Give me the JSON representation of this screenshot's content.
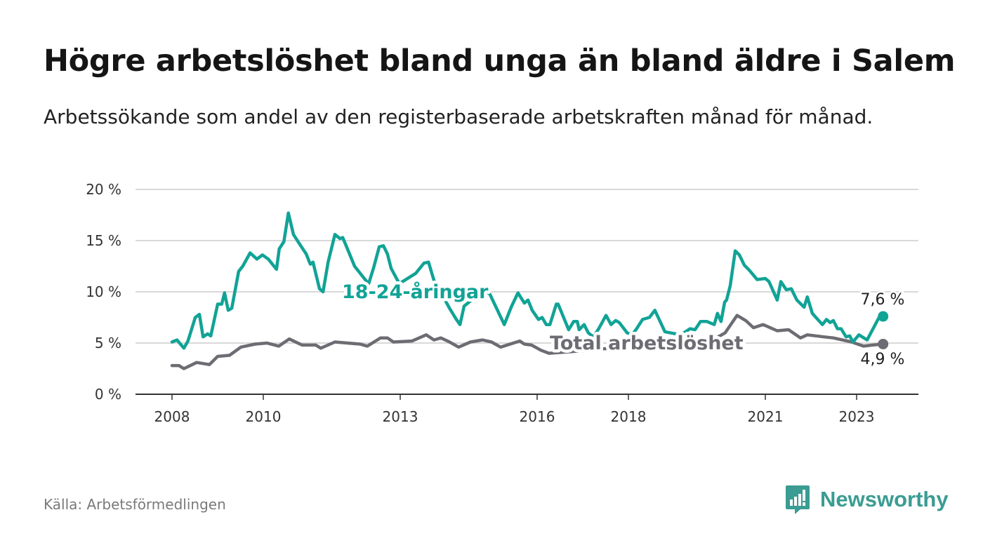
{
  "title": "Högre arbetslöshet bland unga än bland äldre i Salem",
  "subtitle": "Arbetssökande som andel av den registerbaserade arbetskraften månad för månad.",
  "source": "Källa: Arbetsförmedlingen",
  "logo": {
    "text": "Newsworthy",
    "icon": "newsworthy-bar-chart-bubble-icon"
  },
  "colors": {
    "youth": "#11a396",
    "total": "#6e6c73",
    "grid": "#d9d9d9",
    "axis": "#333333"
  },
  "chart_data": {
    "type": "line",
    "title": "Högre arbetslöshet bland unga än bland äldre i Salem",
    "xlabel": "",
    "ylabel": "",
    "ylim": [
      0,
      20
    ],
    "xlim": [
      2007.25,
      2024.7
    ],
    "grid": true,
    "y_ticks": [
      {
        "v": 0,
        "label": "0 %"
      },
      {
        "v": 5,
        "label": "5 %"
      },
      {
        "v": 10,
        "label": "10 %"
      },
      {
        "v": 15,
        "label": "15 %"
      },
      {
        "v": 20,
        "label": "20 %"
      }
    ],
    "x_ticks": [
      {
        "v": 2008,
        "label": "2008"
      },
      {
        "v": 2010,
        "label": "2010"
      },
      {
        "v": 2013,
        "label": "2013"
      },
      {
        "v": 2016,
        "label": "2016"
      },
      {
        "v": 2018,
        "label": "2018"
      },
      {
        "v": 2021,
        "label": "2021"
      },
      {
        "v": 2023,
        "label": "2023"
      }
    ],
    "series": [
      {
        "name": "18-24-åringar",
        "color": "#11a396",
        "end_label": "7,6 %",
        "points": [
          [
            2008.0,
            5.1
          ],
          [
            2008.11,
            5.3
          ],
          [
            2008.26,
            4.5
          ],
          [
            2008.35,
            5.2
          ],
          [
            2008.51,
            7.5
          ],
          [
            2008.6,
            7.8
          ],
          [
            2008.68,
            5.6
          ],
          [
            2008.78,
            5.9
          ],
          [
            2008.85,
            5.7
          ],
          [
            2009.0,
            8.8
          ],
          [
            2009.09,
            8.8
          ],
          [
            2009.15,
            9.9
          ],
          [
            2009.23,
            8.2
          ],
          [
            2009.31,
            8.4
          ],
          [
            2009.46,
            12.0
          ],
          [
            2009.55,
            12.5
          ],
          [
            2009.71,
            13.8
          ],
          [
            2009.86,
            13.2
          ],
          [
            2009.98,
            13.6
          ],
          [
            2010.11,
            13.2
          ],
          [
            2010.29,
            12.2
          ],
          [
            2010.35,
            14.2
          ],
          [
            2010.45,
            14.9
          ],
          [
            2010.55,
            17.7
          ],
          [
            2010.66,
            15.6
          ],
          [
            2010.82,
            14.5
          ],
          [
            2010.94,
            13.7
          ],
          [
            2011.03,
            12.7
          ],
          [
            2011.09,
            12.9
          ],
          [
            2011.23,
            10.3
          ],
          [
            2011.31,
            10.0
          ],
          [
            2011.42,
            12.9
          ],
          [
            2011.57,
            15.6
          ],
          [
            2011.68,
            15.2
          ],
          [
            2011.74,
            15.3
          ],
          [
            2011.88,
            13.8
          ],
          [
            2012.0,
            12.5
          ],
          [
            2012.23,
            11.2
          ],
          [
            2012.31,
            10.8
          ],
          [
            2012.42,
            12.4
          ],
          [
            2012.54,
            14.4
          ],
          [
            2012.63,
            14.5
          ],
          [
            2012.72,
            13.7
          ],
          [
            2012.8,
            12.3
          ],
          [
            2012.98,
            10.8
          ],
          [
            2013.34,
            11.8
          ],
          [
            2013.52,
            12.8
          ],
          [
            2013.62,
            12.9
          ],
          [
            2013.74,
            11.1
          ],
          [
            2013.92,
            9.7
          ],
          [
            2014.08,
            8.4
          ],
          [
            2014.23,
            7.3
          ],
          [
            2014.31,
            6.8
          ],
          [
            2014.4,
            8.6
          ],
          [
            2014.62,
            9.4
          ],
          [
            2014.8,
            9.9
          ],
          [
            2014.95,
            9.9
          ],
          [
            2015.28,
            6.8
          ],
          [
            2015.43,
            8.5
          ],
          [
            2015.58,
            9.9
          ],
          [
            2015.72,
            8.9
          ],
          [
            2015.8,
            9.2
          ],
          [
            2015.89,
            8.2
          ],
          [
            2016.03,
            7.3
          ],
          [
            2016.11,
            7.5
          ],
          [
            2016.2,
            6.8
          ],
          [
            2016.28,
            6.8
          ],
          [
            2016.42,
            8.8
          ],
          [
            2016.46,
            8.8
          ],
          [
            2016.69,
            6.3
          ],
          [
            2016.8,
            7.1
          ],
          [
            2016.88,
            7.1
          ],
          [
            2016.92,
            6.3
          ],
          [
            2017.03,
            6.8
          ],
          [
            2017.12,
            6.0
          ],
          [
            2017.23,
            5.6
          ],
          [
            2017.35,
            6.4
          ],
          [
            2017.51,
            7.7
          ],
          [
            2017.62,
            6.8
          ],
          [
            2017.72,
            7.2
          ],
          [
            2017.8,
            7.0
          ],
          [
            2017.97,
            6.0
          ],
          [
            2018.08,
            5.8
          ],
          [
            2018.18,
            6.4
          ],
          [
            2018.31,
            7.3
          ],
          [
            2018.46,
            7.5
          ],
          [
            2018.58,
            8.2
          ],
          [
            2018.8,
            6.1
          ],
          [
            2018.92,
            6.0
          ],
          [
            2019.15,
            5.8
          ],
          [
            2019.35,
            6.4
          ],
          [
            2019.46,
            6.3
          ],
          [
            2019.58,
            7.1
          ],
          [
            2019.72,
            7.1
          ],
          [
            2019.88,
            6.8
          ],
          [
            2019.95,
            7.9
          ],
          [
            2020.03,
            7.1
          ],
          [
            2020.11,
            9.0
          ],
          [
            2020.15,
            9.2
          ],
          [
            2020.23,
            10.6
          ],
          [
            2020.34,
            14.0
          ],
          [
            2020.43,
            13.6
          ],
          [
            2020.54,
            12.6
          ],
          [
            2020.65,
            12.1
          ],
          [
            2020.82,
            11.2
          ],
          [
            2021.0,
            11.3
          ],
          [
            2021.08,
            11.0
          ],
          [
            2021.26,
            9.2
          ],
          [
            2021.34,
            11.0
          ],
          [
            2021.46,
            10.2
          ],
          [
            2021.57,
            10.3
          ],
          [
            2021.69,
            9.2
          ],
          [
            2021.85,
            8.5
          ],
          [
            2021.92,
            9.5
          ],
          [
            2022.03,
            7.9
          ],
          [
            2022.25,
            6.8
          ],
          [
            2022.34,
            7.3
          ],
          [
            2022.42,
            7.0
          ],
          [
            2022.49,
            7.2
          ],
          [
            2022.58,
            6.4
          ],
          [
            2022.66,
            6.4
          ],
          [
            2022.77,
            5.6
          ],
          [
            2022.85,
            5.7
          ],
          [
            2022.92,
            5.1
          ],
          [
            2023.05,
            5.8
          ],
          [
            2023.23,
            5.3
          ],
          [
            2023.49,
            7.5
          ],
          [
            2023.58,
            7.6
          ]
        ]
      },
      {
        "name": "Total arbetslöshet",
        "color": "#6e6c73",
        "end_label": "4,9 %",
        "points": [
          [
            2008.0,
            2.8
          ],
          [
            2008.15,
            2.8
          ],
          [
            2008.26,
            2.5
          ],
          [
            2008.54,
            3.1
          ],
          [
            2008.82,
            2.9
          ],
          [
            2009.0,
            3.7
          ],
          [
            2009.26,
            3.8
          ],
          [
            2009.51,
            4.6
          ],
          [
            2009.82,
            4.9
          ],
          [
            2010.08,
            5.0
          ],
          [
            2010.34,
            4.7
          ],
          [
            2010.57,
            5.4
          ],
          [
            2010.85,
            4.8
          ],
          [
            2011.15,
            4.8
          ],
          [
            2011.26,
            4.5
          ],
          [
            2011.57,
            5.1
          ],
          [
            2012.12,
            4.9
          ],
          [
            2012.28,
            4.7
          ],
          [
            2012.57,
            5.5
          ],
          [
            2012.72,
            5.5
          ],
          [
            2012.85,
            5.1
          ],
          [
            2013.26,
            5.2
          ],
          [
            2013.57,
            5.8
          ],
          [
            2013.74,
            5.3
          ],
          [
            2013.89,
            5.5
          ],
          [
            2014.08,
            5.1
          ],
          [
            2014.28,
            4.6
          ],
          [
            2014.54,
            5.1
          ],
          [
            2014.8,
            5.3
          ],
          [
            2015.0,
            5.1
          ],
          [
            2015.2,
            4.6
          ],
          [
            2015.62,
            5.2
          ],
          [
            2015.72,
            4.9
          ],
          [
            2015.88,
            4.8
          ],
          [
            2016.08,
            4.3
          ],
          [
            2016.26,
            4.0
          ],
          [
            2016.85,
            4.2
          ],
          [
            2017.62,
            4.5
          ],
          [
            2018.38,
            4.5
          ],
          [
            2019.15,
            4.7
          ],
          [
            2019.77,
            5.1
          ],
          [
            2020.12,
            6.0
          ],
          [
            2020.38,
            7.7
          ],
          [
            2020.57,
            7.2
          ],
          [
            2020.74,
            6.5
          ],
          [
            2020.95,
            6.8
          ],
          [
            2021.26,
            6.2
          ],
          [
            2021.51,
            6.3
          ],
          [
            2021.77,
            5.5
          ],
          [
            2021.92,
            5.8
          ],
          [
            2022.28,
            5.6
          ],
          [
            2022.49,
            5.5
          ],
          [
            2022.89,
            5.1
          ],
          [
            2023.15,
            4.7
          ],
          [
            2023.35,
            4.8
          ],
          [
            2023.58,
            4.9
          ]
        ]
      }
    ]
  }
}
